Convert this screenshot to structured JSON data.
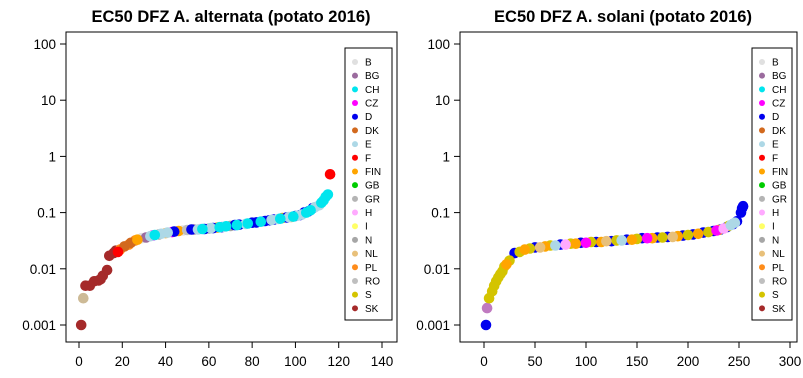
{
  "chart_data": [
    {
      "type": "scatter",
      "title": "EC50 DFZ A. alternata (potato 2016)",
      "xlabel": "",
      "ylabel": "",
      "xlim": [
        0,
        140
      ],
      "ylim": [
        0.001,
        100
      ],
      "y_scale": "log",
      "x_ticks": [
        0,
        20,
        40,
        60,
        80,
        100,
        120,
        140
      ],
      "y_ticks": [
        0.001,
        0.01,
        0.1,
        1,
        10,
        100
      ],
      "y_tick_labels": [
        "0.001",
        "0.01",
        "0.1",
        "1",
        "10",
        "100"
      ],
      "grid": false,
      "legend_position": "right",
      "series": [
        {
          "name": "SK",
          "color": "#a52a2a",
          "points": [
            [
              1,
              0.001
            ],
            [
              3,
              0.005
            ],
            [
              5,
              0.005
            ],
            [
              7,
              0.006
            ],
            [
              9,
              0.0062
            ],
            [
              10,
              0.0065
            ],
            [
              11,
              0.0075
            ],
            [
              13,
              0.0095
            ],
            [
              14,
              0.017
            ],
            [
              16,
              0.019
            ],
            [
              17,
              0.021
            ]
          ]
        },
        {
          "name": "S",
          "color": "#cdba96",
          "points": [
            [
              2,
              0.003
            ]
          ]
        },
        {
          "name": "PL",
          "color": "#ff8c1a",
          "points": [
            [
              19,
              0.022
            ],
            [
              23,
              0.027
            ],
            [
              26,
              0.032
            ]
          ]
        },
        {
          "name": "DK",
          "color": "#d2691e",
          "points": [
            [
              21,
              0.025
            ],
            [
              24,
              0.029
            ]
          ]
        },
        {
          "name": "F",
          "color": "#ff0000",
          "points": [
            [
              18,
              0.02
            ],
            [
              116,
              0.48
            ]
          ]
        },
        {
          "name": "B",
          "color": "#e0e0e0",
          "points": [
            [
              29,
              0.035
            ],
            [
              48,
              0.048
            ]
          ]
        },
        {
          "name": "BG",
          "color": "#9b6b9e",
          "points": [
            [
              31,
              0.036
            ],
            [
              53,
              0.05
            ]
          ]
        },
        {
          "name": "CZ",
          "color": "#ff00ff",
          "points": [
            [
              34,
              0.039
            ],
            [
              43,
              0.045
            ]
          ]
        },
        {
          "name": "N",
          "color": "#a6a6a6",
          "points": [
            [
              37,
              0.041
            ],
            [
              70,
              0.058
            ]
          ]
        },
        {
          "name": "FIN",
          "color": "#ffa500",
          "points": [
            [
              27,
              0.033
            ],
            [
              46,
              0.047
            ],
            [
              64,
              0.054
            ],
            [
              94,
              0.08
            ]
          ]
        },
        {
          "name": "GB",
          "color": "#00cc00",
          "points": []
        },
        {
          "name": "GR",
          "color": "#b4b4b4",
          "points": [
            [
              60,
              0.052
            ]
          ]
        },
        {
          "name": "H",
          "color": "#ffaaff",
          "points": [
            [
              56,
              0.051
            ],
            [
              85,
              0.07
            ]
          ]
        },
        {
          "name": "I",
          "color": "#ffff66",
          "points": []
        },
        {
          "name": "NL",
          "color": "#e8c07a",
          "points": [
            [
              40,
              0.043
            ],
            [
              98,
              0.083
            ]
          ]
        },
        {
          "name": "RO",
          "color": "#bfbfbf",
          "points": [
            [
              50,
              0.049
            ]
          ]
        },
        {
          "name": "D",
          "color": "#0000ee",
          "points": [
            [
              44,
              0.046
            ],
            [
              52,
              0.05
            ],
            [
              58,
              0.051
            ],
            [
              62,
              0.053
            ],
            [
              66,
              0.055
            ],
            [
              72,
              0.06
            ],
            [
              74,
              0.061
            ],
            [
              80,
              0.066
            ],
            [
              82,
              0.067
            ],
            [
              86,
              0.071
            ],
            [
              88,
              0.073
            ],
            [
              90,
              0.075
            ],
            [
              96,
              0.082
            ],
            [
              100,
              0.087
            ],
            [
              102,
              0.09
            ],
            [
              104,
              0.1
            ],
            [
              106,
              0.105
            ],
            [
              108,
              0.12
            ]
          ]
        },
        {
          "name": "E",
          "color": "#add8e6",
          "points": [
            [
              33,
              0.038
            ],
            [
              38,
              0.042
            ],
            [
              41,
              0.044
            ],
            [
              55,
              0.05
            ],
            [
              61,
              0.053
            ],
            [
              67,
              0.056
            ],
            [
              77,
              0.063
            ],
            [
              89,
              0.074
            ],
            [
              92,
              0.077
            ],
            [
              97,
              0.083
            ],
            [
              101,
              0.088
            ],
            [
              103,
              0.092
            ],
            [
              109,
              0.125
            ],
            [
              111,
              0.135
            ]
          ]
        },
        {
          "name": "CH",
          "color": "#00e5ee",
          "points": [
            [
              35,
              0.04
            ],
            [
              57,
              0.051
            ],
            [
              65,
              0.055
            ],
            [
              68,
              0.057
            ],
            [
              73,
              0.06
            ],
            [
              78,
              0.064
            ],
            [
              84,
              0.069
            ],
            [
              93,
              0.078
            ],
            [
              99,
              0.085
            ],
            [
              105,
              0.1
            ],
            [
              107,
              0.11
            ],
            [
              112,
              0.15
            ],
            [
              113,
              0.165
            ],
            [
              114,
              0.19
            ],
            [
              115,
              0.21
            ]
          ]
        }
      ]
    },
    {
      "type": "scatter",
      "title": "EC50 DFZ A. solani (potato 2016)",
      "xlabel": "",
      "ylabel": "",
      "xlim": [
        0,
        300
      ],
      "ylim": [
        0.001,
        100
      ],
      "y_scale": "log",
      "x_ticks": [
        0,
        50,
        100,
        150,
        200,
        250,
        300
      ],
      "y_ticks": [
        0.001,
        0.01,
        0.1,
        1,
        10,
        100
      ],
      "y_tick_labels": [
        "0.001",
        "0.01",
        "0.1",
        "1",
        "10",
        "100"
      ],
      "grid": false,
      "legend_position": "right",
      "series": [
        {
          "name": "D",
          "color": "#0000ee",
          "points": [
            [
              2,
              0.001
            ],
            [
              30,
              0.019
            ],
            [
              50,
              0.024
            ],
            [
              75,
              0.027
            ],
            [
              95,
              0.029
            ],
            [
              110,
              0.03
            ],
            [
              125,
              0.031
            ],
            [
              140,
              0.033
            ],
            [
              155,
              0.035
            ],
            [
              170,
              0.036
            ],
            [
              180,
              0.037
            ],
            [
              195,
              0.039
            ],
            [
              205,
              0.041
            ],
            [
              215,
              0.044
            ],
            [
              225,
              0.047
            ],
            [
              232,
              0.05
            ],
            [
              238,
              0.055
            ],
            [
              244,
              0.062
            ],
            [
              248,
              0.07
            ],
            [
              252,
              0.1
            ],
            [
              253,
              0.12
            ],
            [
              254,
              0.13
            ]
          ]
        },
        {
          "name": "BG",
          "color": "#c07ac0",
          "points": [
            [
              3,
              0.002
            ]
          ]
        },
        {
          "name": "S",
          "color": "#d4c400",
          "points": [
            [
              5,
              0.003
            ],
            [
              8,
              0.004
            ],
            [
              10,
              0.005
            ],
            [
              12,
              0.006
            ],
            [
              14,
              0.007
            ],
            [
              16,
              0.008
            ],
            [
              18,
              0.009
            ],
            [
              20,
              0.011
            ],
            [
              25,
              0.014
            ],
            [
              35,
              0.02
            ],
            [
              45,
              0.023
            ],
            [
              65,
              0.026
            ],
            [
              85,
              0.028
            ],
            [
              105,
              0.03
            ],
            [
              130,
              0.032
            ],
            [
              150,
              0.034
            ],
            [
              175,
              0.036
            ],
            [
              200,
              0.04
            ],
            [
              220,
              0.045
            ],
            [
              240,
              0.058
            ]
          ]
        },
        {
          "name": "FIN",
          "color": "#ffa500",
          "points": [
            [
              22,
              0.012
            ],
            [
              40,
              0.022
            ],
            [
              60,
              0.025
            ],
            [
              90,
              0.028
            ],
            [
              115,
              0.03
            ],
            [
              145,
              0.033
            ],
            [
              165,
              0.035
            ],
            [
              190,
              0.038
            ],
            [
              210,
              0.042
            ],
            [
              230,
              0.049
            ]
          ]
        },
        {
          "name": "NL",
          "color": "#e8c07a",
          "points": [
            [
              55,
              0.024
            ],
            [
              120,
              0.031
            ],
            [
              185,
              0.037
            ]
          ]
        },
        {
          "name": "CZ",
          "color": "#ff00ff",
          "points": [
            [
              100,
              0.029
            ],
            [
              160,
              0.035
            ],
            [
              228,
              0.048
            ]
          ]
        },
        {
          "name": "H",
          "color": "#ffaaff",
          "points": [
            [
              80,
              0.027
            ],
            [
              235,
              0.052
            ]
          ]
        },
        {
          "name": "E",
          "color": "#add8e6",
          "points": [
            [
              70,
              0.026
            ],
            [
              135,
              0.032
            ],
            [
              242,
              0.06
            ],
            [
              246,
              0.066
            ]
          ]
        },
        {
          "name": "B",
          "color": "#e0e0e0",
          "points": []
        },
        {
          "name": "CH",
          "color": "#00e5ee",
          "points": []
        },
        {
          "name": "DK",
          "color": "#d2691e",
          "points": []
        },
        {
          "name": "F",
          "color": "#ff0000",
          "points": []
        },
        {
          "name": "GB",
          "color": "#00cc00",
          "points": []
        },
        {
          "name": "GR",
          "color": "#b4b4b4",
          "points": []
        },
        {
          "name": "I",
          "color": "#ffff66",
          "points": []
        },
        {
          "name": "N",
          "color": "#a6a6a6",
          "points": []
        },
        {
          "name": "PL",
          "color": "#ff8c1a",
          "points": []
        },
        {
          "name": "RO",
          "color": "#bfbfbf",
          "points": []
        },
        {
          "name": "SK",
          "color": "#a52a2a",
          "points": []
        }
      ]
    }
  ],
  "legend": {
    "entries": [
      {
        "name": "B",
        "color": "#e0e0e0"
      },
      {
        "name": "BG",
        "color": "#9b6b9e"
      },
      {
        "name": "CH",
        "color": "#00e5ee"
      },
      {
        "name": "CZ",
        "color": "#ff00ff"
      },
      {
        "name": "D",
        "color": "#0000ee"
      },
      {
        "name": "DK",
        "color": "#d2691e"
      },
      {
        "name": "E",
        "color": "#add8e6"
      },
      {
        "name": "F",
        "color": "#ff0000"
      },
      {
        "name": "FIN",
        "color": "#ffa500"
      },
      {
        "name": "GB",
        "color": "#00cc00"
      },
      {
        "name": "GR",
        "color": "#b4b4b4"
      },
      {
        "name": "H",
        "color": "#ffaaff"
      },
      {
        "name": "I",
        "color": "#ffff66"
      },
      {
        "name": "N",
        "color": "#a6a6a6"
      },
      {
        "name": "NL",
        "color": "#e8c07a"
      },
      {
        "name": "PL",
        "color": "#ff8c1a"
      },
      {
        "name": "RO",
        "color": "#bfbfbf"
      },
      {
        "name": "S",
        "color": "#d4c400"
      },
      {
        "name": "SK",
        "color": "#a52a2a"
      }
    ]
  }
}
